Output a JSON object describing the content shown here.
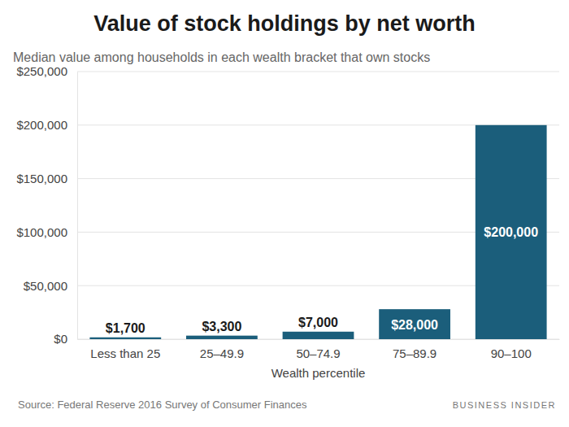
{
  "chart_data": {
    "type": "bar",
    "title": "Value of stock holdings by net worth",
    "subtitle": "Median value among households in each wealth bracket that own stocks",
    "x_label": "Wealth percentile",
    "source": "Source: Federal Reserve 2016 Survey of Consumer Finances",
    "credit": "BUSINESS INSIDER",
    "categories": [
      "Less than 25",
      "25–49.9",
      "50–74.9",
      "75–89.9",
      "90–100"
    ],
    "values": [
      1700,
      3300,
      7000,
      28000,
      200000
    ],
    "value_labels": [
      "$1,700",
      "$3,300",
      "$7,000",
      "$28,000",
      "$200,000"
    ],
    "data_labels": true,
    "color": "#1b5e7b",
    "ylim": [
      0,
      250000
    ],
    "yticks": [
      {
        "value": 0,
        "label": "$0"
      },
      {
        "value": 50000,
        "label": "$50,000"
      },
      {
        "value": 100000,
        "label": "$100,000"
      },
      {
        "value": 150000,
        "label": "$150,000"
      },
      {
        "value": 200000,
        "label": "$200,000"
      },
      {
        "value": 250000,
        "label": "$250,000"
      }
    ],
    "grid": true
  }
}
